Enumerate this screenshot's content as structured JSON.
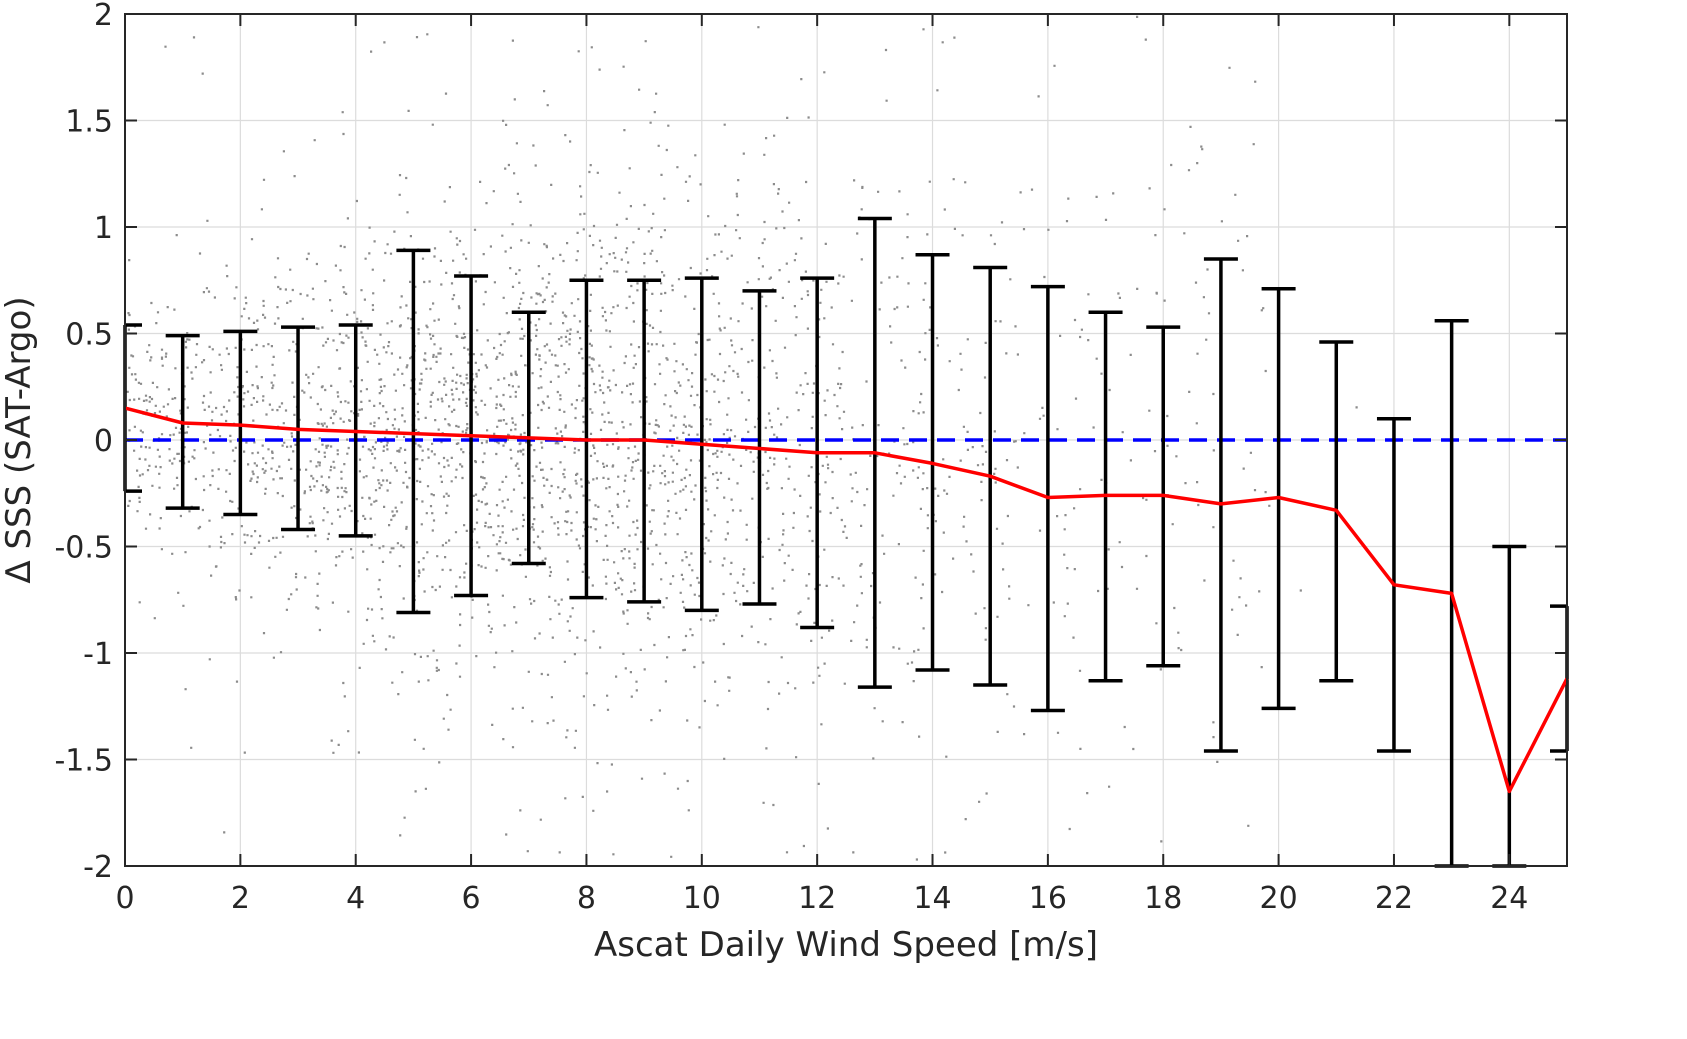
{
  "chart_data": {
    "type": "scatter",
    "xlabel": "Ascat Daily Wind Speed [m/s]",
    "ylabel": "Δ SSS (SAT-Argo)",
    "xlim": [
      0,
      25
    ],
    "ylim": [
      -2,
      2
    ],
    "xticks": [
      0,
      2,
      4,
      6,
      8,
      10,
      12,
      14,
      16,
      18,
      20,
      22,
      24
    ],
    "yticks": [
      -2,
      -1.5,
      -1,
      -0.5,
      0,
      0.5,
      1,
      1.5,
      2
    ],
    "ytick_labels": [
      "-2",
      "-1.5",
      "-1",
      "-0.5",
      "0",
      "0.5",
      "1",
      "1.5",
      "2"
    ],
    "grid": true,
    "zero_line": {
      "y": 0,
      "color": "#0000ff",
      "style": "dashed"
    },
    "scatter_color": "#8c8c8c",
    "mean_line_color": "#ff0000",
    "errorbar_color": "#000000",
    "mean_line": {
      "x": [
        0,
        1,
        2,
        3,
        4,
        5,
        6,
        7,
        8,
        9,
        10,
        11,
        12,
        13,
        14,
        15,
        16,
        17,
        18,
        19,
        20,
        21,
        22,
        23,
        24,
        25
      ],
      "y": [
        0.15,
        0.08,
        0.07,
        0.05,
        0.04,
        0.03,
        0.02,
        0.01,
        0.0,
        0.0,
        -0.02,
        -0.04,
        -0.06,
        -0.06,
        -0.11,
        -0.17,
        -0.27,
        -0.26,
        -0.26,
        -0.3,
        -0.27,
        -0.33,
        -0.68,
        -0.72,
        -1.65,
        -1.12
      ]
    },
    "error_bars": {
      "x": [
        0,
        1,
        2,
        3,
        4,
        5,
        6,
        7,
        8,
        9,
        10,
        11,
        12,
        13,
        14,
        15,
        16,
        17,
        18,
        19,
        20,
        21,
        22,
        23,
        24,
        25
      ],
      "upper": [
        0.54,
        0.49,
        0.51,
        0.53,
        0.54,
        0.89,
        0.77,
        0.6,
        0.75,
        0.75,
        0.76,
        0.7,
        0.76,
        1.04,
        0.87,
        0.81,
        0.72,
        0.6,
        0.53,
        0.85,
        0.71,
        0.46,
        0.1,
        0.56,
        -0.5,
        -0.78
      ],
      "lower": [
        -0.24,
        -0.32,
        -0.35,
        -0.42,
        -0.45,
        -0.81,
        -0.73,
        -0.58,
        -0.74,
        -0.76,
        -0.8,
        -0.77,
        -0.88,
        -1.16,
        -1.08,
        -1.15,
        -1.27,
        -1.13,
        -1.06,
        -1.46,
        -1.26,
        -1.13,
        -1.46,
        -2.0,
        -2.0,
        -1.46
      ]
    },
    "scatter_distribution": {
      "description_free_params": true,
      "points": 30000,
      "x_center": 7,
      "x_spread": 4,
      "y_spread": 0.45
    }
  }
}
